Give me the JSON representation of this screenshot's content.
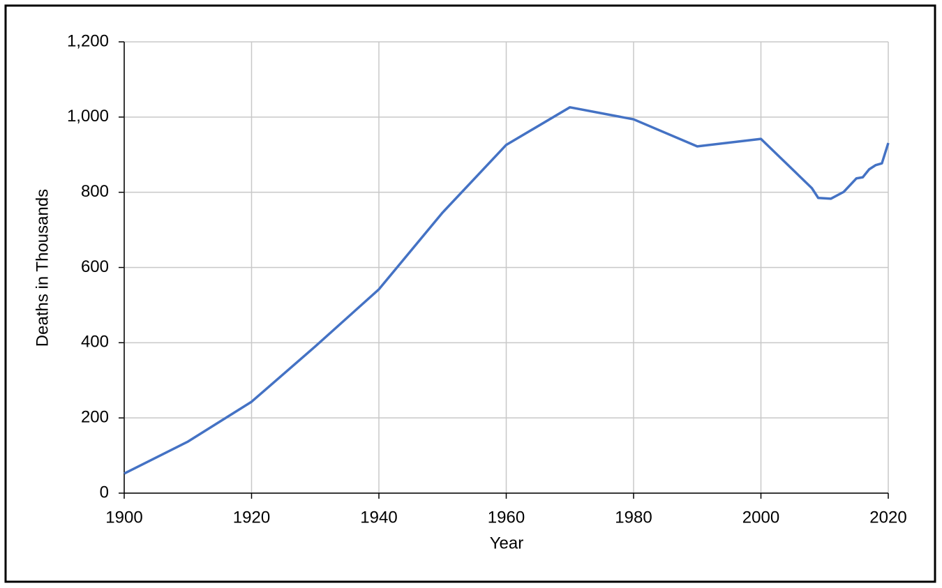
{
  "chart_data": {
    "type": "line",
    "x_label": "Year",
    "y_label": "Deaths in Thousands",
    "x": [
      1900,
      1910,
      1920,
      1930,
      1940,
      1950,
      1960,
      1970,
      1980,
      1990,
      2000,
      2008,
      2009,
      2011,
      2013,
      2015,
      2016,
      2017,
      2018,
      2019,
      2020
    ],
    "series": [
      {
        "color": "#4472c4",
        "values": [
          52,
          137,
          243,
          390,
          542,
          746,
          926,
          1026,
          994,
          922,
          942,
          811,
          785,
          783,
          801,
          837,
          840,
          861,
          872,
          877,
          931
        ]
      }
    ],
    "xlim": [
      1900,
      2020
    ],
    "xticks": [
      1900,
      1920,
      1940,
      1960,
      1980,
      2000,
      2020
    ],
    "ylim": [
      0,
      1200
    ],
    "yticks": [
      0,
      200,
      400,
      600,
      800,
      {
        "value": 1000,
        "label": "1,000"
      },
      {
        "value": 1200,
        "label": "1,200"
      }
    ],
    "grid": true
  }
}
